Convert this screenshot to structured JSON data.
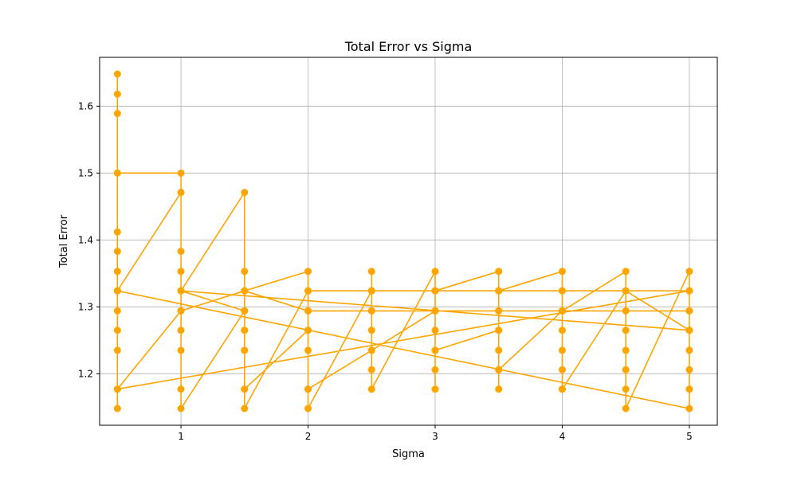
{
  "chart_data": {
    "type": "line",
    "title": "Total Error vs Sigma",
    "xlabel": "Sigma",
    "ylabel": "Total Error",
    "xlim": [
      0.36,
      5.22
    ],
    "ylim": [
      1.123,
      1.673
    ],
    "xticks": [
      1,
      2,
      3,
      4,
      5
    ],
    "yticks": [
      1.2,
      1.3,
      1.4,
      1.5,
      1.6
    ],
    "xtick_labels": [
      "1",
      "2",
      "3",
      "4",
      "5"
    ],
    "ytick_labels": [
      "1.2",
      "1.3",
      "1.4",
      "1.5",
      "1.6"
    ],
    "grid": true,
    "color": "#FFA500",
    "series": [
      {
        "x": [
          0.5,
          0.5,
          0.5,
          0.5,
          0.5,
          0.5,
          0.5,
          0.5,
          0.5,
          0.5,
          0.5,
          0.5,
          0.5,
          0.5,
          0.5,
          1,
          1,
          1.5,
          1.5,
          1.5,
          2,
          2,
          2,
          2,
          2,
          2,
          2,
          2.5,
          2.5,
          2.5,
          2.5,
          2.5,
          2.5,
          2.5,
          2.5,
          3,
          3,
          3,
          3,
          3,
          3,
          3,
          3,
          3.5,
          3.5,
          3.5,
          3.5,
          3.5,
          3.5,
          3.5,
          3.5,
          4,
          4,
          4,
          4,
          4,
          4,
          4,
          4,
          4.5,
          4.5,
          4.5,
          4.5,
          4.5,
          4.5,
          4.5,
          4.5,
          5,
          5,
          5,
          5,
          5,
          5,
          5,
          5,
          0.5,
          1,
          1,
          1,
          1,
          1,
          1,
          1,
          1,
          1,
          1.5,
          1.5,
          1.5,
          1.5,
          1.5,
          2,
          2.5,
          3,
          3.5,
          4,
          4.5,
          5,
          0.5,
          1,
          1.5,
          1.5,
          1.5,
          1.5,
          1.5,
          2,
          2,
          2.5,
          3,
          3,
          3.5,
          3.5,
          4,
          4,
          4.5,
          5,
          1,
          1.5,
          1.5,
          2,
          2.5,
          3,
          3.5,
          4,
          5
        ],
        "y": [
          1.648,
          1.618,
          1.589,
          1.5,
          1.412,
          1.383,
          1.353,
          1.324,
          1.294,
          1.265,
          1.235,
          1.177,
          1.148,
          1.324,
          1.5,
          1.5,
          1.324,
          1.471,
          1.353,
          1.324,
          1.353,
          1.324,
          1.294,
          1.265,
          1.235,
          1.177,
          1.148,
          1.324,
          1.353,
          1.324,
          1.294,
          1.265,
          1.235,
          1.206,
          1.177,
          1.353,
          1.324,
          1.294,
          1.265,
          1.235,
          1.206,
          1.177,
          1.324,
          1.353,
          1.324,
          1.294,
          1.265,
          1.235,
          1.206,
          1.177,
          1.324,
          1.353,
          1.324,
          1.294,
          1.265,
          1.235,
          1.206,
          1.177,
          1.294,
          1.353,
          1.324,
          1.294,
          1.265,
          1.235,
          1.206,
          1.177,
          1.148,
          1.353,
          1.324,
          1.294,
          1.265,
          1.235,
          1.206,
          1.177,
          1.148,
          1.324,
          1.471,
          1.383,
          1.353,
          1.324,
          1.294,
          1.265,
          1.235,
          1.177,
          1.148,
          1.294,
          1.265,
          1.235,
          1.177,
          1.148,
          1.324,
          1.324,
          1.324,
          1.324,
          1.324,
          1.324,
          1.324,
          1.177,
          1.294,
          1.324,
          1.294,
          1.265,
          1.235,
          1.177,
          1.265,
          1.177,
          1.235,
          1.294,
          1.235,
          1.265,
          1.206,
          1.294,
          1.177,
          1.324,
          1.265,
          1.324,
          1.294,
          1.324,
          1.294,
          1.294,
          1.294,
          1.294,
          1.294,
          1.294
        ]
      }
    ]
  }
}
